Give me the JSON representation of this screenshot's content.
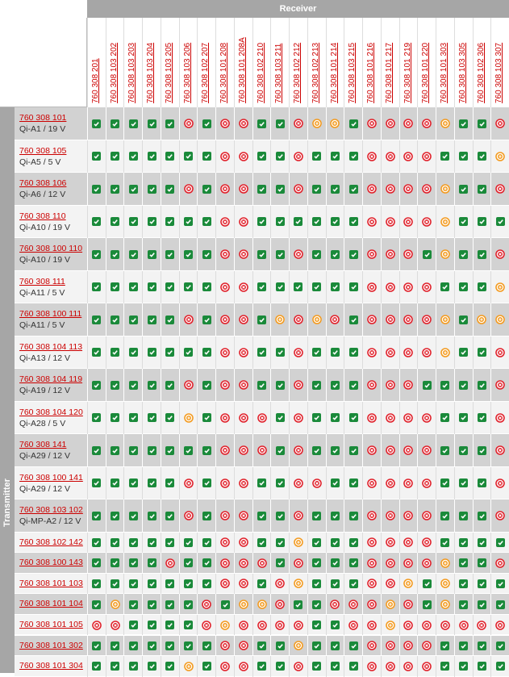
{
  "header": {
    "receiver": "Receiver",
    "transmitter": "Transmitter"
  },
  "columns": [
    "760 308 201",
    "760 308 103 202",
    "760 308 103 203",
    "760 308 103 204",
    "760 308 103 205",
    "760 308 103 206",
    "760 308 102 207",
    "760 308 101 208",
    "760 308 101 208A",
    "760 308 102 210",
    "760 308 103 211",
    "760 308 102 212",
    "760 308 102 213",
    "760 308 101 214",
    "760 308 103 215",
    "760 308 101 216",
    "760 308 101 217",
    "760 308 101 219",
    "760 308 101 220",
    "760 308 101 303",
    "760 308 103 305",
    "760 308 102 306",
    "760 308 103 307"
  ],
  "rows": [
    {
      "product": "760 308 101",
      "spec": "Qi-A1 / 19 V",
      "cells": [
        "g",
        "g",
        "g",
        "g",
        "g",
        "r",
        "g",
        "r",
        "r",
        "g",
        "g",
        "r",
        "o",
        "o",
        "g",
        "r",
        "r",
        "r",
        "r",
        "o",
        "g",
        "g",
        "r"
      ]
    },
    {
      "product": "760 308 105",
      "spec": "Qi-A5 / 5 V",
      "cells": [
        "g",
        "g",
        "g",
        "g",
        "g",
        "g",
        "g",
        "r",
        "r",
        "g",
        "g",
        "r",
        "g",
        "g",
        "g",
        "r",
        "r",
        "r",
        "r",
        "g",
        "g",
        "g",
        "o"
      ]
    },
    {
      "product": "760 308 106",
      "spec": "Qi-A6 / 12 V",
      "cells": [
        "g",
        "g",
        "g",
        "g",
        "g",
        "r",
        "g",
        "r",
        "r",
        "g",
        "g",
        "r",
        "g",
        "g",
        "g",
        "r",
        "r",
        "r",
        "r",
        "o",
        "g",
        "g",
        "r"
      ]
    },
    {
      "product": "760 308 110",
      "spec": "Qi-A10 / 19 V",
      "cells": [
        "g",
        "g",
        "g",
        "g",
        "g",
        "g",
        "g",
        "r",
        "r",
        "g",
        "g",
        "g",
        "g",
        "g",
        "g",
        "r",
        "r",
        "r",
        "r",
        "o",
        "g",
        "g",
        "g"
      ]
    },
    {
      "product": "760 308 100 110",
      "spec": "Qi-A10 / 19 V",
      "cells": [
        "g",
        "g",
        "g",
        "g",
        "g",
        "g",
        "g",
        "r",
        "r",
        "g",
        "g",
        "r",
        "g",
        "g",
        "g",
        "r",
        "r",
        "r",
        "g",
        "o",
        "g",
        "g",
        "r"
      ]
    },
    {
      "product": "760 308 111",
      "spec": "Qi-A11 / 5 V",
      "cells": [
        "g",
        "g",
        "g",
        "g",
        "g",
        "g",
        "g",
        "r",
        "r",
        "g",
        "g",
        "g",
        "g",
        "g",
        "g",
        "r",
        "r",
        "r",
        "r",
        "g",
        "g",
        "g",
        "o"
      ]
    },
    {
      "product": "760 308 100 111",
      "spec": "Qi-A11 / 5 V",
      "cells": [
        "g",
        "g",
        "g",
        "g",
        "g",
        "r",
        "g",
        "r",
        "r",
        "g",
        "o",
        "r",
        "o",
        "r",
        "g",
        "r",
        "r",
        "r",
        "r",
        "o",
        "g",
        "o",
        "o"
      ]
    },
    {
      "product": "760 308 104 113",
      "spec": "Qi-A13 / 12 V",
      "cells": [
        "g",
        "g",
        "g",
        "g",
        "g",
        "g",
        "g",
        "r",
        "r",
        "g",
        "g",
        "r",
        "g",
        "g",
        "g",
        "r",
        "r",
        "r",
        "r",
        "o",
        "g",
        "g",
        "r"
      ]
    },
    {
      "product": "760 308 104 119",
      "spec": "Qi-A19 / 12 V",
      "cells": [
        "g",
        "g",
        "g",
        "g",
        "g",
        "r",
        "g",
        "r",
        "r",
        "g",
        "g",
        "r",
        "g",
        "g",
        "g",
        "r",
        "r",
        "r",
        "g",
        "g",
        "g",
        "g",
        "r"
      ]
    },
    {
      "product": "760 308 104 120",
      "spec": "Qi-A28 / 5 V",
      "cells": [
        "g",
        "g",
        "g",
        "g",
        "g",
        "o",
        "g",
        "r",
        "r",
        "r",
        "g",
        "r",
        "g",
        "g",
        "g",
        "r",
        "r",
        "r",
        "r",
        "g",
        "g",
        "g",
        "r"
      ]
    },
    {
      "product": "760 308 141",
      "spec": "Qi-A29 / 12 V",
      "cells": [
        "g",
        "g",
        "g",
        "g",
        "g",
        "g",
        "g",
        "r",
        "r",
        "r",
        "g",
        "r",
        "g",
        "g",
        "g",
        "r",
        "r",
        "r",
        "r",
        "g",
        "g",
        "g",
        "r"
      ]
    },
    {
      "product": "760 308 100 141",
      "spec": "Qi-A29 / 12 V",
      "cells": [
        "g",
        "g",
        "g",
        "g",
        "g",
        "r",
        "g",
        "r",
        "r",
        "g",
        "g",
        "r",
        "r",
        "g",
        "g",
        "r",
        "r",
        "r",
        "r",
        "g",
        "g",
        "g",
        "r"
      ]
    },
    {
      "product": "760 308 103 102",
      "spec": "Qi-MP-A2 / 12 V",
      "cells": [
        "g",
        "g",
        "g",
        "g",
        "g",
        "r",
        "g",
        "r",
        "r",
        "g",
        "g",
        "r",
        "g",
        "g",
        "g",
        "r",
        "r",
        "r",
        "r",
        "g",
        "g",
        "g",
        "r"
      ]
    },
    {
      "product": "760 308 102 142",
      "cells": [
        "g",
        "g",
        "g",
        "g",
        "g",
        "g",
        "g",
        "r",
        "r",
        "g",
        "g",
        "o",
        "g",
        "g",
        "g",
        "r",
        "r",
        "r",
        "r",
        "g",
        "g",
        "g",
        "g"
      ]
    },
    {
      "product": "760 308 100 143",
      "cells": [
        "g",
        "g",
        "g",
        "g",
        "r",
        "g",
        "g",
        "r",
        "r",
        "r",
        "g",
        "r",
        "g",
        "g",
        "g",
        "r",
        "r",
        "r",
        "r",
        "o",
        "g",
        "g",
        "r"
      ]
    },
    {
      "product": "760 308 101 103",
      "cells": [
        "g",
        "g",
        "g",
        "g",
        "g",
        "g",
        "g",
        "r",
        "r",
        "g",
        "r",
        "o",
        "g",
        "g",
        "g",
        "r",
        "r",
        "o",
        "g",
        "o",
        "g",
        "g",
        "g"
      ]
    },
    {
      "product": "760 308 101 104",
      "cells": [
        "g",
        "o",
        "g",
        "g",
        "g",
        "g",
        "r",
        "g",
        "o",
        "o",
        "r",
        "g",
        "g",
        "r",
        "r",
        "r",
        "o",
        "r",
        "g",
        "o",
        "g",
        "g",
        "g"
      ]
    },
    {
      "product": "760 308 101 105",
      "cells": [
        "r",
        "r",
        "g",
        "g",
        "g",
        "g",
        "r",
        "o",
        "r",
        "r",
        "r",
        "r",
        "g",
        "g",
        "r",
        "r",
        "o",
        "r",
        "r",
        "r",
        "r",
        "r",
        "r"
      ]
    },
    {
      "product": "760 308 101 302",
      "cells": [
        "g",
        "g",
        "g",
        "g",
        "g",
        "g",
        "g",
        "r",
        "r",
        "g",
        "g",
        "o",
        "g",
        "g",
        "g",
        "r",
        "r",
        "r",
        "r",
        "g",
        "g",
        "g",
        "g"
      ]
    },
    {
      "product": "760 308 101 304",
      "cells": [
        "g",
        "g",
        "g",
        "g",
        "g",
        "o",
        "g",
        "r",
        "r",
        "g",
        "g",
        "r",
        "g",
        "g",
        "g",
        "r",
        "r",
        "r",
        "r",
        "g",
        "g",
        "g",
        "g"
      ]
    }
  ]
}
